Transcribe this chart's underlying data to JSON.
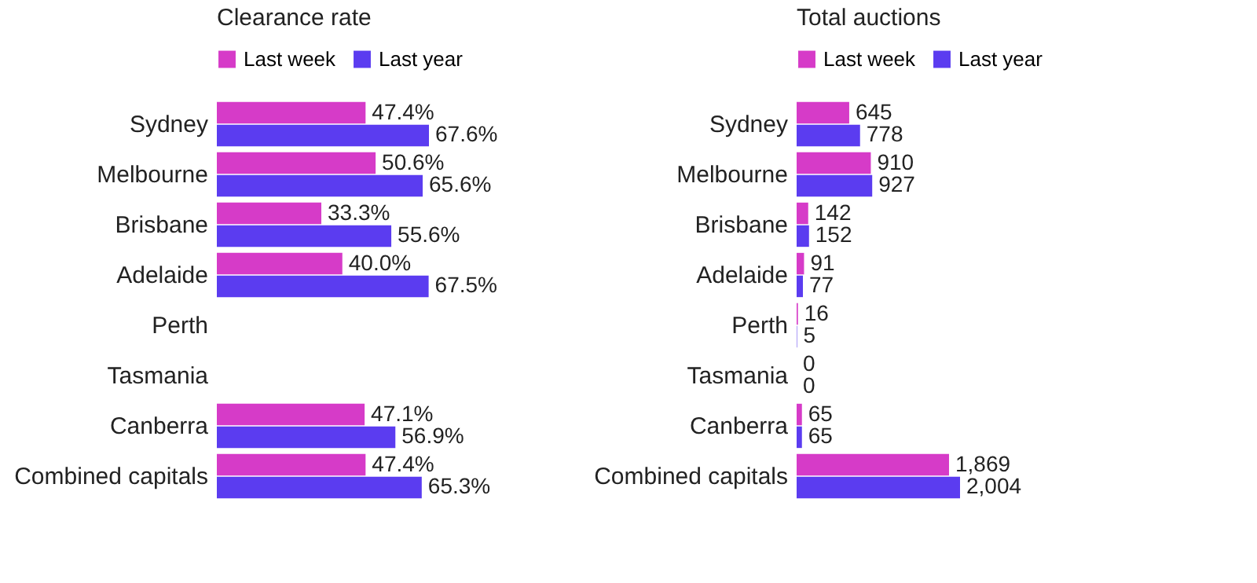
{
  "chart_data": [
    {
      "type": "bar",
      "orientation": "horizontal",
      "title": "Clearance rate",
      "categories": [
        "Sydney",
        "Melbourne",
        "Brisbane",
        "Adelaide",
        "Perth",
        "Tasmania",
        "Canberra",
        "Combined capitals"
      ],
      "legend": "top",
      "tick_labels": "y",
      "series": [
        {
          "name": "Last week",
          "color": "#d63bc8",
          "values": [
            47.4,
            50.6,
            33.3,
            40.0,
            null,
            null,
            47.1,
            47.4
          ],
          "value_labels": [
            "47.4%",
            "50.6%",
            "33.3%",
            "40.0%",
            null,
            null,
            "47.1%",
            "47.4%"
          ]
        },
        {
          "name": "Last year",
          "color": "#5b3cf0",
          "values": [
            67.6,
            65.6,
            55.6,
            67.5,
            null,
            null,
            56.9,
            65.3
          ],
          "value_labels": [
            "67.6%",
            "65.6%",
            "55.6%",
            "67.5%",
            null,
            null,
            "56.9%",
            "65.3%"
          ]
        }
      ]
    },
    {
      "type": "bar",
      "orientation": "horizontal",
      "title": "Total auctions",
      "categories": [
        "Sydney",
        "Melbourne",
        "Brisbane",
        "Adelaide",
        "Perth",
        "Tasmania",
        "Canberra",
        "Combined capitals"
      ],
      "legend": "top",
      "tick_labels": "y",
      "series": [
        {
          "name": "Last week",
          "color": "#d63bc8",
          "values": [
            645,
            910,
            142,
            91,
            16,
            0,
            65,
            1869
          ],
          "value_labels": [
            "645",
            "910",
            "142",
            "91",
            "16",
            "0",
            "65",
            "1,869"
          ]
        },
        {
          "name": "Last year",
          "color": "#5b3cf0",
          "values": [
            778,
            927,
            152,
            77,
            5,
            0,
            65,
            2004
          ],
          "value_labels": [
            "778",
            "927",
            "152",
            "77",
            "5",
            "0",
            "65",
            "2,004"
          ]
        }
      ]
    }
  ]
}
